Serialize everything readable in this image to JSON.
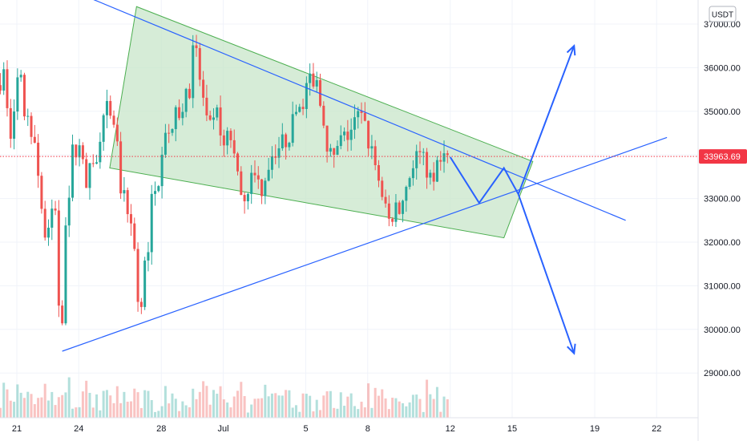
{
  "chart_data": {
    "type": "candlestick",
    "currency_label": "USDT",
    "last_price": 33963.69,
    "last_price_label": "33963.69",
    "y_ticks": [
      {
        "value": 29000,
        "label": "29000.00"
      },
      {
        "value": 30000,
        "label": "30000.00"
      },
      {
        "value": 31000,
        "label": "31000.00"
      },
      {
        "value": 32000,
        "label": "32000.00"
      },
      {
        "value": 33000,
        "label": "33000.00"
      },
      {
        "value": 34000,
        "label": "34000.00"
      },
      {
        "value": 35000,
        "label": "35000.00"
      },
      {
        "value": 36000,
        "label": "36000.00"
      },
      {
        "value": 37000,
        "label": "37000.00"
      }
    ],
    "x_ticks": [
      {
        "day": 0,
        "label": "21"
      },
      {
        "day": 3,
        "label": "24"
      },
      {
        "day": 7,
        "label": "28"
      },
      {
        "day": 10,
        "label": "Jul"
      },
      {
        "day": 14,
        "label": "5"
      },
      {
        "day": 17,
        "label": "8"
      },
      {
        "day": 21,
        "label": "12"
      },
      {
        "day": 24,
        "label": "15"
      },
      {
        "day": 28,
        "label": "19"
      },
      {
        "day": 31,
        "label": "22"
      }
    ],
    "price_path": [
      [
        -0.8,
        35600
      ],
      [
        -0.4,
        35900
      ],
      [
        -0.2,
        34200
      ],
      [
        0.0,
        34900
      ],
      [
        0.3,
        35900
      ],
      [
        0.6,
        34700
      ],
      [
        1.0,
        34600
      ],
      [
        1.3,
        33100
      ],
      [
        1.6,
        31800
      ],
      [
        1.8,
        32500
      ],
      [
        2.0,
        33300
      ],
      [
        2.2,
        30600
      ],
      [
        2.4,
        30300
      ],
      [
        2.55,
        32800
      ],
      [
        2.7,
        33200
      ],
      [
        2.9,
        34200
      ],
      [
        3.2,
        34100
      ],
      [
        3.5,
        33400
      ],
      [
        3.9,
        33800
      ],
      [
        4.2,
        34200
      ],
      [
        4.5,
        35100
      ],
      [
        4.8,
        34600
      ],
      [
        5.0,
        34300
      ],
      [
        5.2,
        33200
      ],
      [
        5.4,
        32900
      ],
      [
        5.6,
        32200
      ],
      [
        5.8,
        32600
      ],
      [
        6.0,
        30800
      ],
      [
        6.1,
        30200
      ],
      [
        6.3,
        31300
      ],
      [
        6.5,
        31800
      ],
      [
        6.7,
        32900
      ],
      [
        7.0,
        33300
      ],
      [
        7.1,
        33800
      ],
      [
        7.3,
        34700
      ],
      [
        7.6,
        34500
      ],
      [
        7.9,
        34900
      ],
      [
        8.2,
        35100
      ],
      [
        8.5,
        35400
      ],
      [
        8.7,
        36300
      ],
      [
        8.9,
        36200
      ],
      [
        9.1,
        35600
      ],
      [
        9.3,
        34800
      ],
      [
        9.6,
        34500
      ],
      [
        9.9,
        35000
      ],
      [
        10.2,
        34200
      ],
      [
        10.5,
        34500
      ],
      [
        10.8,
        33500
      ],
      [
        11.2,
        33100
      ],
      [
        11.6,
        33500
      ],
      [
        12.0,
        33200
      ],
      [
        12.3,
        33700
      ],
      [
        12.6,
        34100
      ],
      [
        12.9,
        34200
      ],
      [
        13.3,
        34400
      ],
      [
        13.7,
        35000
      ],
      [
        14.0,
        35200
      ],
      [
        14.3,
        35700
      ],
      [
        14.5,
        35500
      ],
      [
        14.7,
        35600
      ],
      [
        14.9,
        35100
      ],
      [
        15.2,
        34300
      ],
      [
        15.5,
        33800
      ],
      [
        15.8,
        34300
      ],
      [
        16.1,
        34400
      ],
      [
        16.4,
        34600
      ],
      [
        16.7,
        34900
      ],
      [
        17.0,
        34700
      ],
      [
        17.2,
        34300
      ],
      [
        17.5,
        33800
      ],
      [
        17.7,
        33400
      ],
      [
        17.9,
        32800
      ],
      [
        18.2,
        32500
      ],
      [
        18.5,
        32700
      ],
      [
        18.8,
        32900
      ],
      [
        19.1,
        33400
      ],
      [
        19.4,
        33900
      ],
      [
        19.7,
        34000
      ],
      [
        20.0,
        33700
      ],
      [
        20.3,
        33500
      ],
      [
        20.6,
        33700
      ],
      [
        20.9,
        33963.69
      ]
    ],
    "trendlines": [
      {
        "name": "upper-trendline",
        "color": "#2962ff",
        "points": [
          [
            2.2,
            29500
          ],
          [
            31.5,
            34400
          ]
        ]
      },
      {
        "name": "lower-trendline",
        "color": "#2962ff",
        "points": [
          [
            2.5,
            37800
          ],
          [
            29.5,
            32500
          ]
        ]
      }
    ],
    "channel": {
      "name": "channel-rectangle",
      "fill": "#c8e6c9",
      "stroke": "#4caf50",
      "points": [
        [
          4.5,
          33700
        ],
        [
          5.8,
          37400
        ],
        [
          25.0,
          33850
        ],
        [
          23.6,
          32100
        ]
      ]
    },
    "projection_path": {
      "name": "projection-zigzag",
      "color": "#2962ff",
      "points": [
        [
          21.0,
          33950
        ],
        [
          22.4,
          32900
        ],
        [
          23.6,
          33700
        ],
        [
          24.3,
          33100
        ]
      ]
    },
    "arrows": [
      {
        "name": "bullish-arrow",
        "color": "#2962ff",
        "points": [
          [
            24.3,
            33100
          ],
          [
            27.0,
            36500
          ]
        ]
      },
      {
        "name": "bearish-arrow",
        "color": "#2962ff",
        "points": [
          [
            24.3,
            33100
          ],
          [
            27.0,
            29450
          ]
        ]
      }
    ],
    "colors": {
      "up": "#26a69a",
      "down": "#ef5350",
      "price_badge": "#f23645",
      "grid": "#f0f3fa",
      "axis_text": "#131722"
    }
  }
}
